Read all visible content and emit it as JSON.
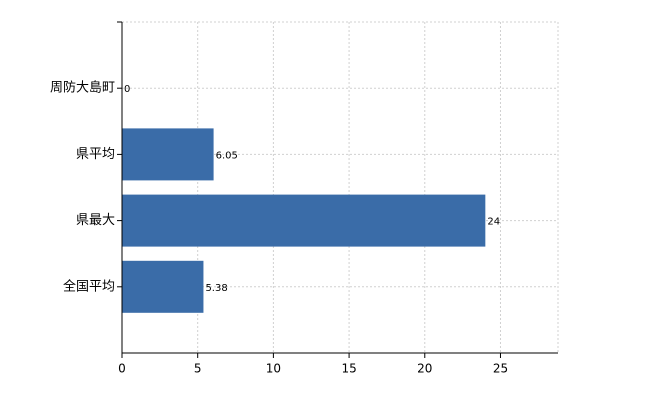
{
  "chart_data": {
    "type": "bar",
    "orientation": "horizontal",
    "categories": [
      "周防大島町",
      "県平均",
      "県最大",
      "全国平均"
    ],
    "values": [
      0,
      6.05,
      24,
      5.38
    ],
    "color": "#3a6ca8",
    "xlim": [
      0,
      28.8
    ],
    "xticks": [
      0,
      5,
      10,
      15,
      20,
      25
    ],
    "grid": true
  }
}
